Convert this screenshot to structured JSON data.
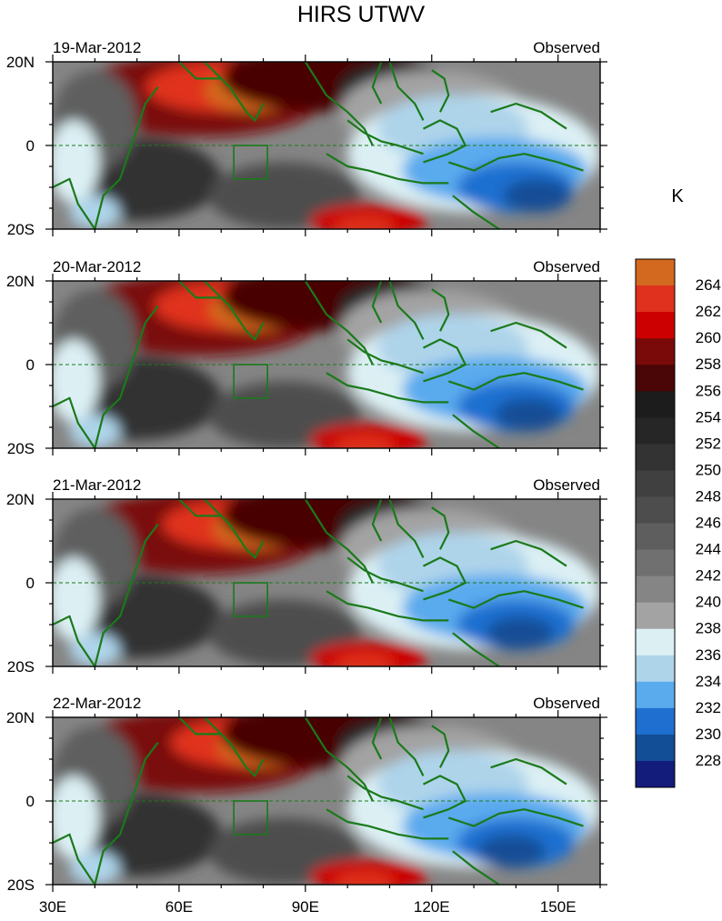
{
  "title": "HIRS UTWV",
  "colorbar": {
    "unit": "K",
    "labels": [
      "264",
      "262",
      "260",
      "258",
      "256",
      "254",
      "252",
      "250",
      "248",
      "246",
      "244",
      "242",
      "240",
      "238",
      "236",
      "234",
      "232",
      "230",
      "228"
    ],
    "colors": [
      "#d2691e",
      "#e0301e",
      "#cc0000",
      "#7a0a0a",
      "#4a0606",
      "#1c1c1c",
      "#262626",
      "#333333",
      "#404040",
      "#4d4d4d",
      "#5e5e5e",
      "#707070",
      "#858585",
      "#a3a3a3",
      "#dcf0f4",
      "#aed4ea",
      "#5aaaee",
      "#1f6fd0",
      "#124e96",
      "#131c7a"
    ]
  },
  "axes": {
    "x_ticks": [
      "30E",
      "60E",
      "90E",
      "120E",
      "150E"
    ],
    "y_ticks": [
      "20N",
      "0",
      "20S"
    ]
  },
  "panels": [
    {
      "date": "19-Mar-2012",
      "label": "Observed"
    },
    {
      "date": "20-Mar-2012",
      "label": "Observed"
    },
    {
      "date": "21-Mar-2012",
      "label": "Observed"
    },
    {
      "date": "22-Mar-2012",
      "label": "Observed"
    }
  ]
}
